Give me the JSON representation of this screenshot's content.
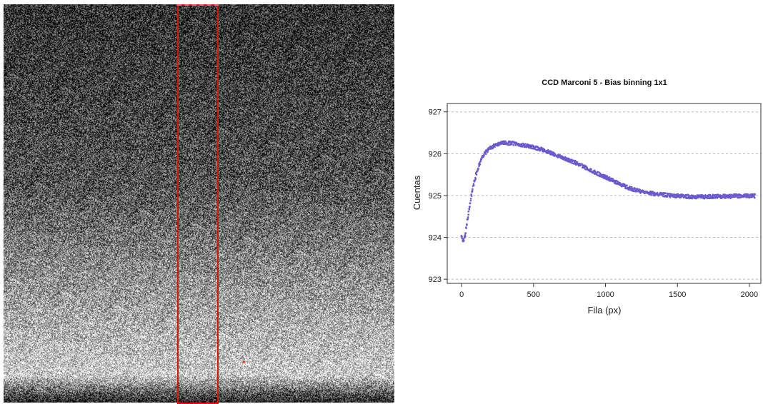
{
  "ccd_image": {
    "roi_color": "#e01010"
  },
  "chart_data": {
    "type": "scatter",
    "title": "CCD Marconi 5 - Bias binning 1x1",
    "xlabel": "Fila (px)",
    "ylabel": "Cuentas",
    "xlim": [
      -100,
      2080
    ],
    "ylim": [
      922.9,
      927.2
    ],
    "xticks": [
      0,
      500,
      1000,
      1500,
      2000
    ],
    "yticks": [
      923,
      924,
      925,
      926,
      927
    ],
    "grid": "horizontal dashed",
    "point_color": "#6a5acd",
    "series": [
      {
        "x": [
          0,
          10,
          20,
          30,
          40,
          50,
          60,
          80,
          100,
          120,
          150,
          180,
          200,
          250,
          300,
          350,
          400,
          450,
          500,
          550,
          600,
          650,
          700,
          750,
          800,
          850,
          900,
          950,
          1000,
          1050,
          1100,
          1150,
          1200,
          1250,
          1300,
          1350,
          1400,
          1450,
          1500,
          1550,
          1600,
          1650,
          1700,
          1750,
          1800,
          1850,
          1900,
          1950,
          2000,
          2040
        ],
        "y": [
          924.05,
          923.92,
          923.98,
          924.15,
          924.4,
          924.62,
          924.85,
          925.2,
          925.5,
          925.72,
          925.95,
          926.08,
          926.14,
          926.23,
          926.26,
          926.25,
          926.22,
          926.19,
          926.15,
          926.11,
          926.05,
          925.98,
          925.91,
          925.84,
          925.77,
          925.69,
          925.6,
          925.52,
          925.44,
          925.36,
          925.28,
          925.2,
          925.14,
          925.09,
          925.06,
          925.04,
          925.02,
          925.0,
          924.99,
          924.98,
          924.97,
          924.97,
          924.97,
          924.98,
          924.98,
          924.98,
          924.99,
          924.99,
          924.99,
          924.99
        ]
      }
    ]
  }
}
